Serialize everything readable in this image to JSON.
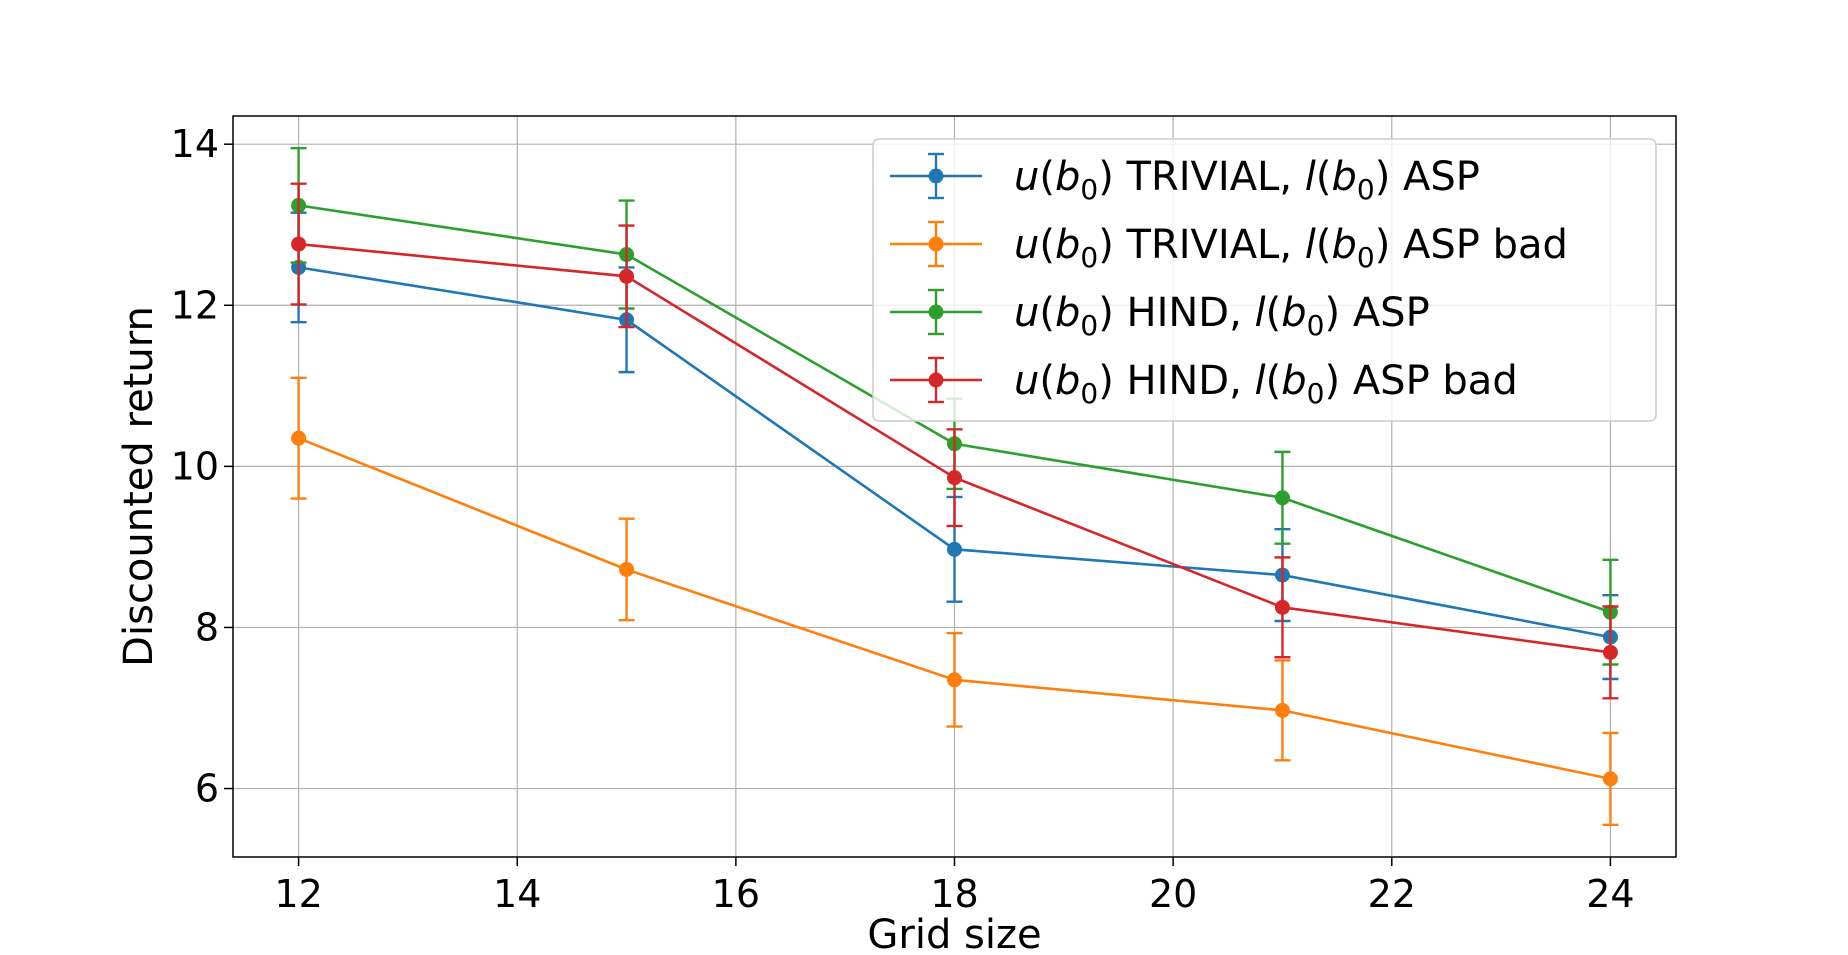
{
  "chart_data": {
    "type": "line",
    "xlabel": "Grid size",
    "ylabel": "Discounted return",
    "xlim": [
      11.4,
      24.6
    ],
    "ylim": [
      5.15,
      14.35
    ],
    "xticks": [
      12,
      14,
      16,
      18,
      20,
      22,
      24
    ],
    "yticks": [
      6,
      8,
      10,
      12,
      14
    ],
    "grid": true,
    "legend_position": "top-right",
    "x": [
      12,
      15,
      18,
      21,
      24
    ],
    "series": [
      {
        "name": "u(b0) TRIVIAL, l(b0) ASP",
        "legend": {
          "u": "u",
          "open": "(",
          "b": "b",
          "sub": "0",
          "close": ")",
          "mid": " TRIVIAL, ",
          "l": "l",
          "tail": ") ASP"
        },
        "color": "#1f77b4",
        "values": [
          12.47,
          11.82,
          8.97,
          8.65,
          7.88
        ],
        "errors": [
          0.68,
          0.65,
          0.65,
          0.57,
          0.52
        ]
      },
      {
        "name": "u(b0) TRIVIAL, l(b0) ASP bad",
        "legend": {
          "u": "u",
          "open": "(",
          "b": "b",
          "sub": "0",
          "close": ")",
          "mid": " TRIVIAL, ",
          "l": "l",
          "tail": ") ASP bad"
        },
        "color": "#ff7f0e",
        "values": [
          10.35,
          8.72,
          7.35,
          6.97,
          6.12
        ],
        "errors": [
          0.75,
          0.63,
          0.58,
          0.62,
          0.57
        ]
      },
      {
        "name": "u(b0) HIND, l(b0) ASP",
        "legend": {
          "u": "u",
          "open": "(",
          "b": "b",
          "sub": "0",
          "close": ")",
          "mid": " HIND, ",
          "l": "l",
          "tail": ") ASP"
        },
        "color": "#2ca02c",
        "values": [
          13.24,
          12.63,
          10.28,
          9.61,
          8.19
        ],
        "errors": [
          0.71,
          0.67,
          0.56,
          0.57,
          0.65
        ]
      },
      {
        "name": "u(b0) HIND, l(b0) ASP bad",
        "legend": {
          "u": "u",
          "open": "(",
          "b": "b",
          "sub": "0",
          "close": ")",
          "mid": " HIND, ",
          "l": "l",
          "tail": ") ASP bad"
        },
        "color": "#d62728",
        "values": [
          12.76,
          12.36,
          9.86,
          8.25,
          7.69
        ],
        "errors": [
          0.75,
          0.63,
          0.6,
          0.62,
          0.57
        ]
      }
    ]
  }
}
